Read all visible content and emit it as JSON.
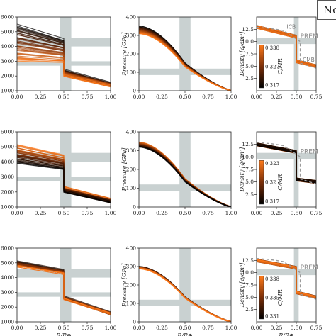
{
  "legend": {
    "label": "Nor"
  },
  "colors": {
    "band": "#c9d1d1",
    "dark": "#000000",
    "mid": "#7a2e08",
    "bright": "#ff7a1a",
    "dash": "#9a9a9a"
  },
  "chart_data": [
    {
      "id": "r1-temp",
      "type": "line",
      "xlabel": "",
      "ylabel": "",
      "xlim": [
        0,
        1
      ],
      "ylim": [
        1000,
        6000
      ],
      "xticks": [
        "0.00",
        "0.25",
        "0.50",
        "0.75",
        "1.00"
      ],
      "yticks": [
        "1000",
        "2000",
        "3000",
        "4000",
        "5000",
        "6000"
      ],
      "series": [
        {
          "x": [
            0,
            0.5,
            0.5,
            1
          ],
          "y": [
            5500,
            4500,
            2400,
            1500
          ]
        },
        {
          "x": [
            0,
            0.5,
            0.5,
            1
          ],
          "y": [
            3000,
            2900,
            2000,
            1300
          ]
        }
      ]
    },
    {
      "id": "r1-pres",
      "type": "line",
      "xlabel": "",
      "ylabel": "Pressure [GPa]",
      "xlim": [
        0,
        1
      ],
      "ylim": [
        0,
        400
      ],
      "xticks": [
        "0.00",
        "0.25",
        "0.50",
        "0.75",
        "1.00"
      ],
      "yticks": [
        "0",
        "100",
        "200",
        "300",
        "400"
      ],
      "series": [
        {
          "x": [
            0,
            0.5,
            1
          ],
          "y": [
            350,
            150,
            0
          ]
        },
        {
          "x": [
            0,
            0.5,
            1
          ],
          "y": [
            310,
            130,
            0
          ]
        }
      ]
    },
    {
      "id": "r1-dens",
      "type": "line",
      "xlabel": "",
      "ylabel": "Density [g/cm³]",
      "xlim": [
        0,
        0.75
      ],
      "ylim": [
        0,
        15
      ],
      "xticks": [
        "0.00",
        "0.25",
        "0.50",
        "0.75"
      ],
      "yticks": [
        "2.5",
        "5.0",
        "7.5",
        "10.0",
        "12.5"
      ],
      "colorbar": {
        "label": "C/MR",
        "ticks": [
          "0.338",
          "0.327",
          "0.317"
        ]
      },
      "annotations": [
        "ICB",
        "PREM",
        "CMB"
      ],
      "series": [
        {
          "x": [
            0,
            0.5,
            0.5,
            0.75
          ],
          "y": [
            13,
            11,
            6,
            5
          ]
        }
      ]
    },
    {
      "id": "r2-temp",
      "type": "line",
      "xlabel": "",
      "ylabel": "",
      "xlim": [
        0,
        1
      ],
      "ylim": [
        1000,
        6000
      ],
      "xticks": [
        "0.00",
        "0.25",
        "0.50",
        "0.75",
        "1.00"
      ],
      "yticks": [
        "1000",
        "2000",
        "3000",
        "4000",
        "5000",
        "6000"
      ],
      "series": [
        {
          "x": [
            0,
            0.5,
            0.5,
            1
          ],
          "y": [
            5100,
            4400,
            2300,
            1500
          ]
        },
        {
          "x": [
            0,
            0.5,
            0.5,
            1
          ],
          "y": [
            3900,
            3500,
            2000,
            1300
          ]
        }
      ]
    },
    {
      "id": "r2-pres",
      "type": "line",
      "xlabel": "",
      "ylabel": "Pressure [GPa]",
      "xlim": [
        0,
        1
      ],
      "ylim": [
        0,
        400
      ],
      "xticks": [
        "0.00",
        "0.25",
        "0.50",
        "0.75",
        "1.00"
      ],
      "yticks": [
        "0",
        "100",
        "200",
        "300",
        "400"
      ],
      "series": [
        {
          "x": [
            0,
            0.5,
            1
          ],
          "y": [
            345,
            150,
            0
          ]
        },
        {
          "x": [
            0,
            0.5,
            1
          ],
          "y": [
            320,
            135,
            0
          ]
        }
      ]
    },
    {
      "id": "r2-dens",
      "type": "line",
      "xlabel": "",
      "ylabel": "Density [g/cm³]",
      "xlim": [
        0,
        0.75
      ],
      "ylim": [
        0,
        15
      ],
      "xticks": [
        "0.00",
        "0.25",
        "0.50",
        "0.75"
      ],
      "yticks": [
        "2.5",
        "5.0",
        "7.5",
        "10.0",
        "12.5"
      ],
      "colorbar": {
        "label": "C/MR",
        "ticks": [
          "0.323",
          "0.32",
          "0.317"
        ]
      },
      "annotations": [
        "PREM"
      ],
      "series": [
        {
          "x": [
            0,
            0.5,
            0.5,
            0.75
          ],
          "y": [
            12.5,
            11,
            5.5,
            5
          ]
        }
      ]
    },
    {
      "id": "r3-temp",
      "type": "line",
      "xlabel": "R/R⊕",
      "ylabel": "",
      "xlim": [
        0,
        1
      ],
      "ylim": [
        1000,
        6000
      ],
      "xticks": [
        "0.00",
        "0.25",
        "0.50",
        "0.75",
        "1.00"
      ],
      "yticks": [
        "1000",
        "2000",
        "3000",
        "4000",
        "5000",
        "6000"
      ],
      "series": [
        {
          "x": [
            0,
            0.5,
            0.5,
            1
          ],
          "y": [
            5100,
            4500,
            2700,
            1600
          ]
        },
        {
          "x": [
            0,
            0.5,
            0.5,
            1
          ],
          "y": [
            4700,
            4200,
            2500,
            1500
          ]
        }
      ]
    },
    {
      "id": "r3-pres",
      "type": "line",
      "xlabel": "R/R⊕",
      "ylabel": "Pressure [GPa]",
      "xlim": [
        0,
        1
      ],
      "ylim": [
        0,
        400
      ],
      "xticks": [
        "0.00",
        "0.25",
        "0.50",
        "0.75",
        "1.00"
      ],
      "yticks": [
        "0",
        "100",
        "200",
        "300",
        "400"
      ],
      "series": [
        {
          "x": [
            0,
            0.5,
            1
          ],
          "y": [
            300,
            135,
            0
          ]
        },
        {
          "x": [
            0,
            0.5,
            1
          ],
          "y": [
            290,
            130,
            0
          ]
        }
      ]
    },
    {
      "id": "r3-dens",
      "type": "line",
      "xlabel": "R/R⊕",
      "ylabel": "Density [g/cm³]",
      "xlim": [
        0,
        0.75
      ],
      "ylim": [
        0,
        15
      ],
      "xticks": [
        "0.00",
        "0.25",
        "0.50",
        "0.75"
      ],
      "yticks": [
        "2.5",
        "5.0",
        "7.5",
        "10.0",
        "12.5"
      ],
      "colorbar": {
        "label": "C/MR",
        "ticks": [
          "0.338",
          "0.335",
          "0.331"
        ]
      },
      "annotations": [
        "PREM"
      ],
      "series": [
        {
          "x": [
            0,
            0.5,
            0.5,
            0.75
          ],
          "y": [
            12.5,
            11,
            6,
            5
          ]
        }
      ]
    }
  ]
}
